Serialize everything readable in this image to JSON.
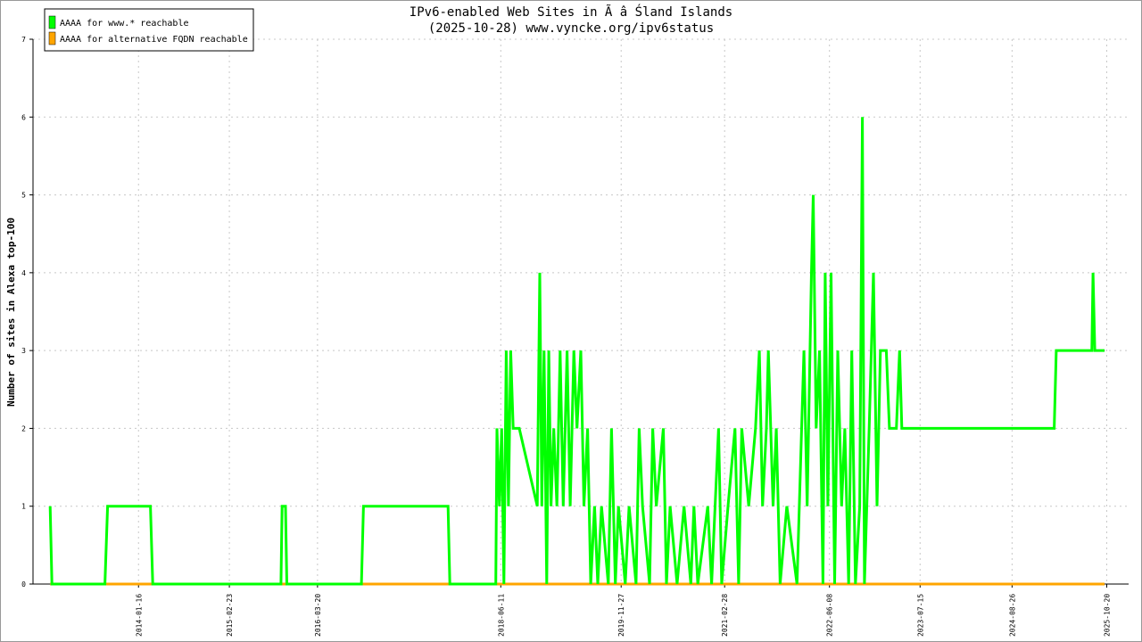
{
  "chart_data": {
    "type": "line",
    "title": "IPv6-enabled Web Sites in Ã â Śland Islands",
    "subtitle": "(2025-10-28) www.vyncke.org/ipv6status",
    "y_label": "Number of sites in Alexa top-100",
    "xlim": [
      "2012-10-05",
      "2026-01-25"
    ],
    "xticks": [
      "2014-01-16",
      "2015-02-23",
      "2016-03-20",
      "2018-06-11",
      "2019-11-27",
      "2021-02-28",
      "2022-06-08",
      "2023-07-15",
      "2024-08-26",
      "2025-10-20"
    ],
    "ylim": [
      0,
      7
    ],
    "yticks": [
      0,
      1,
      2,
      3,
      4,
      5,
      6,
      7
    ],
    "grid": true,
    "legend": "top-left",
    "series": [
      {
        "name": "AAAA for www.* reachable",
        "color": "#00ff00",
        "x": [
          "2012-12-20",
          "2012-12-28",
          "2013-08-20",
          "2013-09-01",
          "2014-03-10",
          "2014-03-20",
          "2015-10-10",
          "2015-10-15",
          "2015-10-30",
          "2015-11-05",
          "2016-10-01",
          "2016-10-10",
          "2017-10-20",
          "2017-10-28",
          "2018-05-20",
          "2018-05-25",
          "2018-06-05",
          "2018-06-15",
          "2018-06-25",
          "2018-07-05",
          "2018-07-15",
          "2018-07-25",
          "2018-08-05",
          "2018-09-01",
          "2018-11-20",
          "2018-12-01",
          "2018-12-10",
          "2018-12-20",
          "2019-01-01",
          "2019-01-10",
          "2019-01-20",
          "2019-02-01",
          "2019-02-15",
          "2019-03-01",
          "2019-03-15",
          "2019-04-01",
          "2019-04-15",
          "2019-05-01",
          "2019-05-15",
          "2019-06-01",
          "2019-06-15",
          "2019-07-01",
          "2019-07-15",
          "2019-08-01",
          "2019-08-15",
          "2019-09-01",
          "2019-10-01",
          "2019-10-15",
          "2019-11-01",
          "2019-11-15",
          "2019-12-15",
          "2020-01-01",
          "2020-02-01",
          "2020-02-15",
          "2020-03-01",
          "2020-04-01",
          "2020-04-15",
          "2020-05-01",
          "2020-06-01",
          "2020-06-15",
          "2020-07-01",
          "2020-08-01",
          "2020-09-01",
          "2020-10-01",
          "2020-10-15",
          "2020-11-01",
          "2020-12-15",
          "2021-01-01",
          "2021-02-01",
          "2021-02-15",
          "2021-03-15",
          "2021-04-15",
          "2021-05-01",
          "2021-05-15",
          "2021-06-15",
          "2021-07-15",
          "2021-08-01",
          "2021-08-15",
          "2021-09-01",
          "2021-09-10",
          "2021-10-01",
          "2021-10-15",
          "2021-11-01",
          "2021-12-01",
          "2022-01-15",
          "2022-02-15",
          "2022-03-01",
          "2022-03-20",
          "2022-03-28",
          "2022-04-10",
          "2022-04-25",
          "2022-05-10",
          "2022-05-20",
          "2022-06-01",
          "2022-06-15",
          "2022-07-01",
          "2022-07-15",
          "2022-08-01",
          "2022-08-15",
          "2022-09-01",
          "2022-09-15",
          "2022-10-01",
          "2022-10-20",
          "2022-11-01",
          "2022-11-10",
          "2022-12-01",
          "2022-12-20",
          "2023-01-05",
          "2023-01-20",
          "2023-02-15",
          "2023-03-01",
          "2023-04-01",
          "2023-04-15",
          "2023-04-25",
          "2025-03-01",
          "2025-03-10",
          "2025-08-15",
          "2025-08-20",
          "2025-08-28",
          "2025-10-10"
        ],
        "values": [
          1,
          0,
          0,
          1,
          1,
          0,
          0,
          1,
          1,
          0,
          0,
          1,
          1,
          0,
          0,
          2,
          1,
          2,
          0,
          3,
          1,
          3,
          2,
          2,
          1,
          4,
          1,
          3,
          0,
          3,
          1,
          2,
          1,
          3,
          1,
          3,
          1,
          3,
          2,
          3,
          1,
          2,
          0,
          1,
          0,
          1,
          0,
          2,
          0,
          1,
          0,
          1,
          0,
          2,
          1,
          0,
          2,
          1,
          2,
          0,
          1,
          0,
          1,
          0,
          1,
          0,
          1,
          0,
          2,
          0,
          1,
          2,
          0,
          2,
          1,
          2,
          3,
          1,
          2,
          3,
          1,
          2,
          0,
          1,
          0,
          3,
          1,
          4,
          5,
          2,
          3,
          0,
          4,
          1,
          4,
          0,
          3,
          1,
          2,
          0,
          3,
          0,
          1,
          6,
          0,
          2,
          4,
          1,
          3,
          3,
          2,
          2,
          3,
          2,
          2,
          3,
          3,
          4,
          3,
          3
        ]
      },
      {
        "name": "AAAA for alternative FQDN reachable",
        "color": "#ffa500",
        "x": [
          "2012-12-20",
          "2025-10-10"
        ],
        "values": [
          0,
          0
        ]
      }
    ]
  }
}
